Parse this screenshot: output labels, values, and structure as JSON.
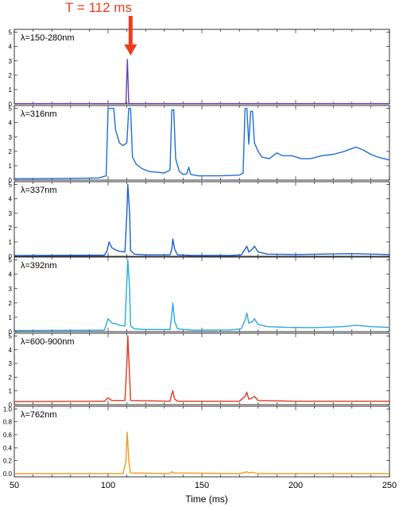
{
  "chart_data": {
    "type": "line",
    "annotation": {
      "label": "T = 112 ms",
      "x": 112,
      "color": "#f03c1e"
    },
    "xlabel": "Time (ms)",
    "xlim": [
      50,
      250
    ],
    "xticks": [
      50,
      100,
      150,
      200,
      250
    ],
    "panels": [
      {
        "label": "λ=150-280nm",
        "color": "#6a3fb5",
        "ylim": [
          0,
          5.2
        ],
        "yticks": [
          0,
          1,
          2,
          3,
          4,
          5
        ],
        "points": [
          [
            50,
            0.02
          ],
          [
            109.5,
            0.02
          ],
          [
            110.3,
            3.1
          ],
          [
            111,
            0.02
          ],
          [
            250,
            0.02
          ]
        ]
      },
      {
        "label": "λ=316nm",
        "color": "#1f6fd6",
        "ylim": [
          0,
          5.2
        ],
        "yticks": [
          0,
          1,
          2,
          3,
          4,
          5
        ],
        "points": [
          [
            50,
            0.1
          ],
          [
            60,
            0.1
          ],
          [
            80,
            0.12
          ],
          [
            95,
            0.15
          ],
          [
            99,
            0.3
          ],
          [
            100,
            5
          ],
          [
            103,
            5
          ],
          [
            104,
            3.5
          ],
          [
            106,
            2.6
          ],
          [
            108,
            2.4
          ],
          [
            110,
            2.6
          ],
          [
            111,
            5
          ],
          [
            112,
            5
          ],
          [
            113,
            1.6
          ],
          [
            115,
            1.1
          ],
          [
            118,
            0.8
          ],
          [
            122,
            0.6
          ],
          [
            126,
            0.55
          ],
          [
            130,
            0.5
          ],
          [
            133,
            0.7
          ],
          [
            134,
            4.9
          ],
          [
            135,
            4.9
          ],
          [
            136,
            1.5
          ],
          [
            138,
            0.6
          ],
          [
            140,
            0.4
          ],
          [
            142,
            0.45
          ],
          [
            143,
            0.9
          ],
          [
            144,
            0.4
          ],
          [
            148,
            0.3
          ],
          [
            160,
            0.3
          ],
          [
            170,
            0.35
          ],
          [
            172,
            0.5
          ],
          [
            173,
            5
          ],
          [
            174,
            5
          ],
          [
            175,
            2.5
          ],
          [
            176,
            4.8
          ],
          [
            177,
            4.8
          ],
          [
            178,
            2.6
          ],
          [
            180,
            2
          ],
          [
            182,
            1.6
          ],
          [
            186,
            1.5
          ],
          [
            190,
            1.9
          ],
          [
            193,
            1.7
          ],
          [
            198,
            1.7
          ],
          [
            203,
            1.5
          ],
          [
            208,
            1.5
          ],
          [
            214,
            1.7
          ],
          [
            220,
            1.8
          ],
          [
            226,
            2.0
          ],
          [
            230,
            2.2
          ],
          [
            232,
            2.3
          ],
          [
            236,
            2.1
          ],
          [
            240,
            1.8
          ],
          [
            244,
            1.6
          ],
          [
            250,
            1.4
          ]
        ]
      },
      {
        "label": "λ=337nm",
        "color": "#1a5fd0",
        "ylim": [
          0,
          5.2
        ],
        "yticks": [
          0,
          1,
          2,
          3,
          4,
          5
        ],
        "points": [
          [
            50,
            0.05
          ],
          [
            98,
            0.08
          ],
          [
            99.5,
            0.4
          ],
          [
            100.5,
            1.0
          ],
          [
            102,
            0.6
          ],
          [
            104,
            0.45
          ],
          [
            106,
            0.35
          ],
          [
            109,
            0.3
          ],
          [
            110,
            3
          ],
          [
            110.5,
            5
          ],
          [
            111.5,
            3
          ],
          [
            112,
            0.4
          ],
          [
            114,
            0.15
          ],
          [
            120,
            0.1
          ],
          [
            133,
            0.1
          ],
          [
            134,
            0.5
          ],
          [
            134.5,
            1.2
          ],
          [
            135.5,
            0.5
          ],
          [
            137,
            0.1
          ],
          [
            145,
            0.06
          ],
          [
            165,
            0.06
          ],
          [
            171,
            0.1
          ],
          [
            173,
            0.5
          ],
          [
            174,
            0.7
          ],
          [
            175,
            0.3
          ],
          [
            177,
            0.5
          ],
          [
            178,
            0.7
          ],
          [
            180,
            0.3
          ],
          [
            185,
            0.15
          ],
          [
            200,
            0.12
          ],
          [
            230,
            0.18
          ],
          [
            250,
            0.12
          ]
        ]
      },
      {
        "label": "λ=392nm",
        "color": "#29a8e3",
        "ylim": [
          0,
          5.2
        ],
        "yticks": [
          0,
          1,
          2,
          3,
          4,
          5
        ],
        "points": [
          [
            50,
            0.08
          ],
          [
            98,
            0.1
          ],
          [
            100,
            0.9
          ],
          [
            102,
            0.6
          ],
          [
            104,
            0.55
          ],
          [
            106,
            0.45
          ],
          [
            109,
            0.4
          ],
          [
            110,
            3.5
          ],
          [
            110.5,
            5
          ],
          [
            111.5,
            3
          ],
          [
            112,
            0.4
          ],
          [
            114,
            0.2
          ],
          [
            120,
            0.15
          ],
          [
            133,
            0.15
          ],
          [
            134,
            1.2
          ],
          [
            134.5,
            2.0
          ],
          [
            135.5,
            0.7
          ],
          [
            137,
            0.2
          ],
          [
            145,
            0.1
          ],
          [
            165,
            0.12
          ],
          [
            171,
            0.2
          ],
          [
            173,
            0.8
          ],
          [
            174,
            1.3
          ],
          [
            175,
            0.6
          ],
          [
            177,
            0.7
          ],
          [
            178,
            0.9
          ],
          [
            180,
            0.5
          ],
          [
            185,
            0.35
          ],
          [
            195,
            0.3
          ],
          [
            210,
            0.28
          ],
          [
            225,
            0.35
          ],
          [
            232,
            0.45
          ],
          [
            240,
            0.35
          ],
          [
            250,
            0.3
          ]
        ]
      },
      {
        "label": "λ=600-900nm",
        "color": "#dd3a1f",
        "ylim": [
          0,
          5.2
        ],
        "yticks": [
          0,
          1,
          2,
          3,
          4,
          5
        ],
        "points": [
          [
            50,
            0.22
          ],
          [
            98,
            0.25
          ],
          [
            100,
            0.5
          ],
          [
            102,
            0.3
          ],
          [
            109,
            0.3
          ],
          [
            110,
            3
          ],
          [
            110.5,
            5
          ],
          [
            111.5,
            2
          ],
          [
            112,
            0.3
          ],
          [
            133,
            0.25
          ],
          [
            134,
            0.8
          ],
          [
            134.5,
            1.0
          ],
          [
            135.5,
            0.4
          ],
          [
            137,
            0.25
          ],
          [
            170,
            0.25
          ],
          [
            173,
            0.6
          ],
          [
            174,
            0.9
          ],
          [
            175,
            0.4
          ],
          [
            177,
            0.5
          ],
          [
            178,
            0.6
          ],
          [
            180,
            0.3
          ],
          [
            200,
            0.25
          ],
          [
            250,
            0.25
          ]
        ]
      },
      {
        "label": "λ=762nm",
        "color": "#f39a1c",
        "ylim": [
          -0.05,
          1.04
        ],
        "yticks": [
          0,
          0.2,
          0.4,
          0.6,
          0.8,
          1.0
        ],
        "ytick_labels": [
          "0.0",
          "0.2",
          "0.4",
          "0.6",
          "0.8",
          "1.0"
        ],
        "points": [
          [
            50,
            0.0
          ],
          [
            108,
            0.0
          ],
          [
            109.5,
            0.2
          ],
          [
            110.2,
            0.64
          ],
          [
            111,
            0.2
          ],
          [
            112,
            0.01
          ],
          [
            133,
            0.0
          ],
          [
            134,
            0.03
          ],
          [
            135,
            0.01
          ],
          [
            170,
            0.0
          ],
          [
            173,
            0.02
          ],
          [
            174,
            0.03
          ],
          [
            175,
            0.01
          ],
          [
            177,
            0.02
          ],
          [
            180,
            0.0
          ],
          [
            250,
            0.0
          ]
        ]
      }
    ]
  }
}
